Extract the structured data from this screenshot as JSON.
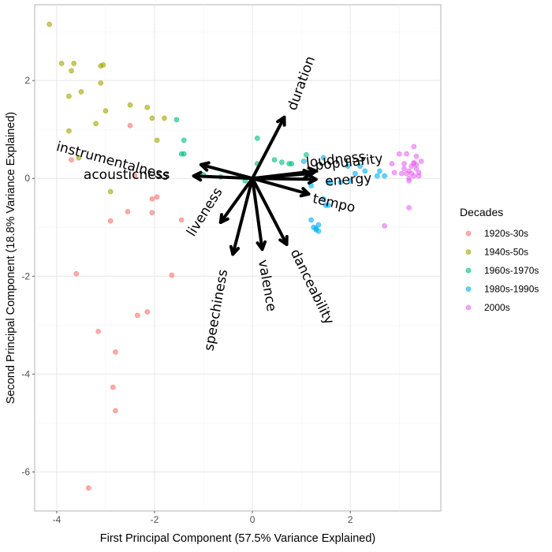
{
  "chart_data": {
    "type": "scatter",
    "subtype": "pca-biplot",
    "xlabel": "First Principal Component (57.5% Variance Explained)",
    "ylabel": "Second Principal Component (18.8% Variance Explained)",
    "xlim": [
      -4.45,
      3.85
    ],
    "ylim": [
      -6.8,
      3.55
    ],
    "xticks": [
      -4,
      -2,
      0,
      2
    ],
    "yticks": [
      -6,
      -4,
      -2,
      0,
      2
    ],
    "grid": true,
    "legend": {
      "title": "Decades",
      "position": "right",
      "entries": [
        "1920s-30s",
        "1940s-50s",
        "1960s-1970s",
        "1980s-1990s",
        "2000s"
      ]
    },
    "series": [
      {
        "name": "1920s-30s",
        "color": "#F8766D",
        "points": [
          [
            -2.5,
            1.08
          ],
          [
            -3.7,
            0.38
          ],
          [
            -2.4,
            0.05
          ],
          [
            -2.05,
            -0.42
          ],
          [
            -1.95,
            -0.38
          ],
          [
            -2.05,
            -0.7
          ],
          [
            -2.55,
            -0.68
          ],
          [
            -2.9,
            -0.87
          ],
          [
            -1.45,
            -0.85
          ],
          [
            -3.6,
            -1.95
          ],
          [
            -1.65,
            -1.98
          ],
          [
            -2.35,
            -2.8
          ],
          [
            -2.15,
            -2.73
          ],
          [
            -3.15,
            -3.13
          ],
          [
            -2.8,
            -3.55
          ],
          [
            -2.85,
            -4.27
          ],
          [
            -2.8,
            -4.75
          ],
          [
            -3.35,
            -6.33
          ]
        ]
      },
      {
        "name": "1940s-50s",
        "color": "#A3A500",
        "points": [
          [
            -4.15,
            3.15
          ],
          [
            -3.9,
            2.35
          ],
          [
            -3.65,
            2.35
          ],
          [
            -3.7,
            2.2
          ],
          [
            -3.1,
            2.3
          ],
          [
            -3.05,
            2.32
          ],
          [
            -3.5,
            1.77
          ],
          [
            -3.1,
            1.95
          ],
          [
            -3.75,
            1.68
          ],
          [
            -3.0,
            1.38
          ],
          [
            -2.5,
            1.5
          ],
          [
            -2.15,
            1.45
          ],
          [
            -2.05,
            1.23
          ],
          [
            -1.8,
            1.23
          ],
          [
            -3.2,
            1.12
          ],
          [
            -3.75,
            0.97
          ],
          [
            -1.95,
            0.78
          ],
          [
            -3.55,
            0.42
          ],
          [
            -2.9,
            -0.27
          ]
        ]
      },
      {
        "name": "1960s-1970s",
        "color": "#00BF7D",
        "points": [
          [
            -1.55,
            1.2
          ],
          [
            -1.4,
            0.78
          ],
          [
            -1.45,
            0.5
          ],
          [
            -1.4,
            0.5
          ],
          [
            -1.0,
            0.07
          ],
          [
            0.1,
            0.3
          ],
          [
            0.1,
            0.82
          ],
          [
            0.45,
            0.38
          ],
          [
            0.6,
            0.33
          ],
          [
            0.75,
            0.3
          ],
          [
            0.8,
            0.3
          ],
          [
            1.1,
            0.48
          ],
          [
            -0.15,
            -0.05
          ],
          [
            -0.65,
            0.03
          ]
        ]
      },
      {
        "name": "1980s-1990s",
        "color": "#00B0F6",
        "points": [
          [
            1.05,
            0.35
          ],
          [
            1.2,
            -0.85
          ],
          [
            1.25,
            -1.0
          ],
          [
            1.3,
            -1.05
          ],
          [
            1.35,
            -1.08
          ],
          [
            1.3,
            -1.02
          ],
          [
            1.35,
            -0.95
          ],
          [
            1.45,
            -0.42
          ],
          [
            1.5,
            -0.55
          ],
          [
            1.55,
            -0.55
          ],
          [
            1.6,
            -0.1
          ],
          [
            1.8,
            -0.08
          ],
          [
            2.0,
            -0.05
          ],
          [
            2.1,
            0.1
          ],
          [
            2.2,
            0.25
          ],
          [
            2.3,
            0.15
          ],
          [
            1.95,
            0.25
          ],
          [
            2.6,
            0.15
          ],
          [
            2.55,
            0.05
          ],
          [
            2.7,
            0.05
          ],
          [
            1.55,
            -0.05
          ],
          [
            1.2,
            -0.15
          ],
          [
            1.45,
            0.42
          ]
        ]
      },
      {
        "name": "2000s",
        "color": "#E76BF3",
        "points": [
          [
            3.0,
            0.5
          ],
          [
            3.15,
            0.5
          ],
          [
            3.3,
            0.65
          ],
          [
            3.35,
            0.45
          ],
          [
            3.45,
            0.35
          ],
          [
            3.3,
            0.32
          ],
          [
            3.25,
            0.25
          ],
          [
            3.3,
            0.3
          ],
          [
            3.35,
            0.2
          ],
          [
            3.2,
            0.15
          ],
          [
            3.1,
            0.2
          ],
          [
            3.05,
            0.1
          ],
          [
            3.4,
            0.05
          ],
          [
            3.3,
            0.05
          ],
          [
            3.2,
            -0.05
          ],
          [
            3.1,
            0.3
          ],
          [
            3.15,
            0.1
          ],
          [
            3.2,
            0.0
          ],
          [
            3.25,
            0.1
          ],
          [
            3.35,
            0.28
          ],
          [
            2.85,
            0.3
          ],
          [
            2.9,
            0.12
          ],
          [
            3.2,
            -0.6
          ],
          [
            2.7,
            -0.97
          ],
          [
            3.4,
            0.12
          ]
        ]
      }
    ],
    "loadings": [
      {
        "label": "duration",
        "x": 0.65,
        "y": 1.25
      },
      {
        "label": "instrumentalness",
        "x": -1.05,
        "y": 0.28
      },
      {
        "label": "acousticness",
        "x": -1.2,
        "y": 0.05
      },
      {
        "label": "loudness",
        "x": 1.3,
        "y": 0.15
      },
      {
        "label": "popularity",
        "x": 1.2,
        "y": 0.1
      },
      {
        "label": "energy",
        "x": 1.3,
        "y": -0.02
      },
      {
        "label": "tempo",
        "x": 1.15,
        "y": -0.32
      },
      {
        "label": "liveness",
        "x": -0.65,
        "y": -0.9
      },
      {
        "label": "speechiness",
        "x": -0.4,
        "y": -1.55
      },
      {
        "label": "valence",
        "x": 0.2,
        "y": -1.45
      },
      {
        "label": "danceability",
        "x": 0.7,
        "y": -1.35
      }
    ]
  }
}
